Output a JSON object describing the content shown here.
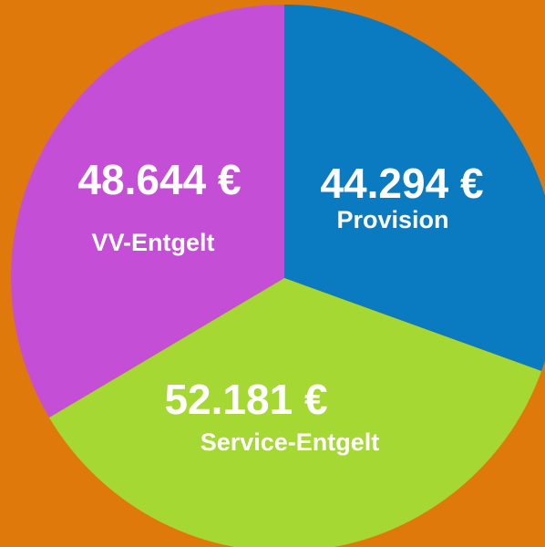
{
  "chart_data": {
    "type": "pie",
    "categories": [
      "Provision",
      "Service-Entgelt",
      "VV-Entgelt"
    ],
    "values": [
      44294,
      52181,
      48644
    ],
    "value_labels": [
      "44.294 €",
      "52.181 €",
      "48.644 €"
    ],
    "colors": [
      "#0a7bc1",
      "#a5d833",
      "#c44fd6"
    ]
  }
}
